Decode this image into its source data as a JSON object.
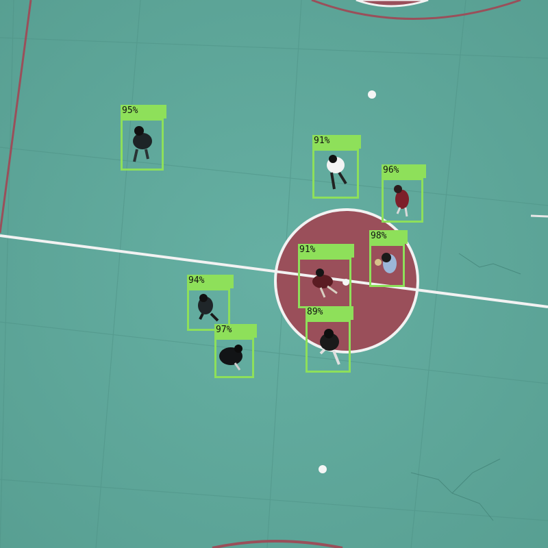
{
  "image": {
    "subject": "aerial view of people standing on a teal sports court with a red center circle",
    "court_color": "#5fa89b",
    "circle_color": "#9a4f5a",
    "line_color": "#f2f2f2",
    "box_color": "#8ee05a"
  },
  "detections": [
    {
      "label": "95%"
    },
    {
      "label": "91%"
    },
    {
      "label": "96%"
    },
    {
      "label": "98%"
    },
    {
      "label": "91%"
    },
    {
      "label": "94%"
    },
    {
      "label": "89%"
    },
    {
      "label": "97%"
    }
  ]
}
